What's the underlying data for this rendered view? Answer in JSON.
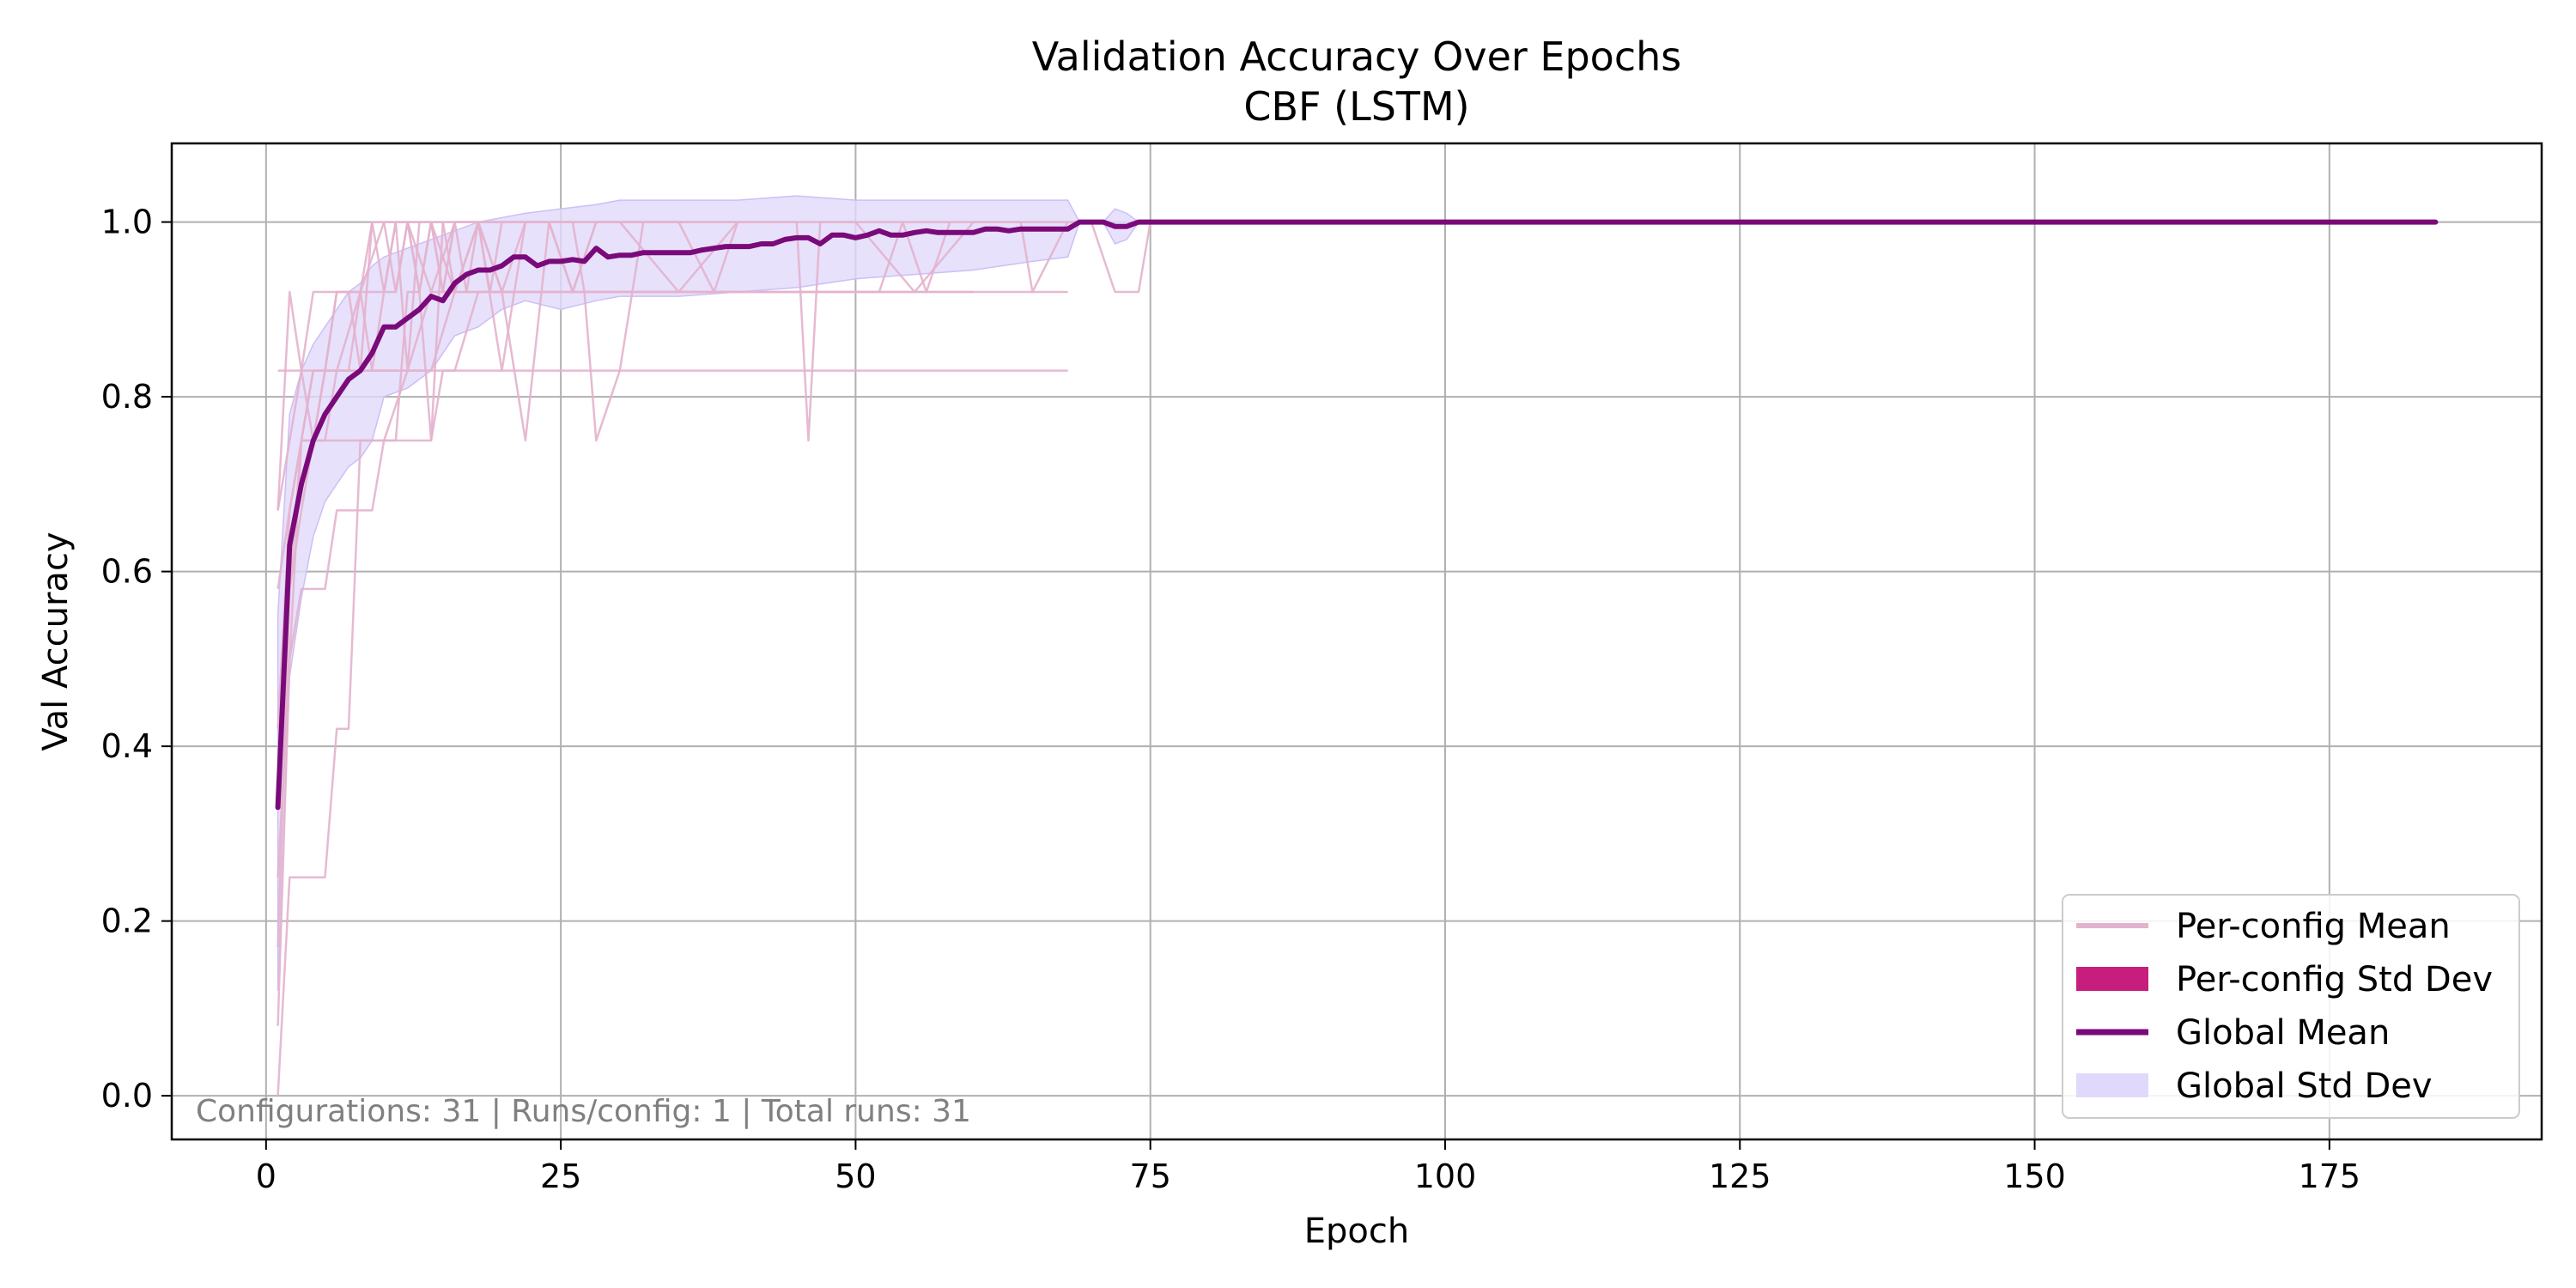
{
  "chart_data": {
    "type": "line",
    "title": "Validation Accuracy Over Epochs",
    "subtitle": "CBF (LSTM)",
    "xlabel": "Epoch",
    "ylabel": "Val Accuracy",
    "xlim": [
      -8,
      193
    ],
    "ylim": [
      -0.05,
      1.09
    ],
    "xticks": [
      0,
      25,
      50,
      75,
      100,
      125,
      150,
      175
    ],
    "yticks": [
      0.0,
      0.2,
      0.4,
      0.6,
      0.8,
      1.0
    ],
    "xtick_labels": [
      "0",
      "25",
      "50",
      "75",
      "100",
      "125",
      "150",
      "175"
    ],
    "ytick_labels": [
      "0.0",
      "0.2",
      "0.4",
      "0.6",
      "0.8",
      "1.0"
    ],
    "grid": true,
    "legend_position": "bottom-right",
    "annotation": "Configurations: 31 | Runs/config: 1 | Total runs: 31",
    "colors": {
      "per_config_mean": "#e3b3cd",
      "per_config_std": "#c71e7d",
      "global_mean": "#7a0a7a",
      "global_std": "#e1d9fb",
      "global_std_edge": "#cdbff5"
    },
    "legend": [
      {
        "label": "Per-config Mean",
        "style": "line",
        "color": "#e3b3cd"
      },
      {
        "label": "Per-config Std Dev",
        "style": "patch",
        "color": "#c71e7d"
      },
      {
        "label": "Global Mean",
        "style": "line",
        "color": "#7a0a7a"
      },
      {
        "label": "Global Std Dev",
        "style": "patch",
        "color": "#e1d9fb"
      }
    ],
    "global_mean": {
      "name": "Global Mean",
      "x": [
        1,
        2,
        3,
        4,
        5,
        6,
        7,
        8,
        9,
        10,
        11,
        12,
        13,
        14,
        15,
        16,
        17,
        18,
        19,
        20,
        21,
        22,
        23,
        24,
        25,
        26,
        27,
        28,
        29,
        30,
        31,
        32,
        33,
        34,
        35,
        36,
        37,
        38,
        39,
        40,
        41,
        42,
        43,
        44,
        45,
        46,
        47,
        48,
        49,
        50,
        51,
        52,
        53,
        54,
        55,
        56,
        57,
        58,
        59,
        60,
        61,
        62,
        63,
        64,
        65,
        66,
        67,
        68,
        69,
        70,
        71,
        72,
        73,
        74,
        75,
        80,
        90,
        100,
        110,
        120,
        130,
        140,
        150,
        160,
        170,
        180,
        184
      ],
      "y": [
        0.33,
        0.63,
        0.7,
        0.75,
        0.78,
        0.8,
        0.82,
        0.83,
        0.85,
        0.88,
        0.88,
        0.89,
        0.9,
        0.915,
        0.91,
        0.93,
        0.94,
        0.945,
        0.945,
        0.95,
        0.96,
        0.96,
        0.95,
        0.955,
        0.955,
        0.957,
        0.955,
        0.97,
        0.96,
        0.962,
        0.962,
        0.965,
        0.965,
        0.965,
        0.965,
        0.965,
        0.968,
        0.97,
        0.972,
        0.972,
        0.972,
        0.975,
        0.975,
        0.98,
        0.982,
        0.982,
        0.975,
        0.985,
        0.985,
        0.982,
        0.985,
        0.99,
        0.985,
        0.985,
        0.988,
        0.99,
        0.988,
        0.988,
        0.988,
        0.988,
        0.992,
        0.992,
        0.99,
        0.992,
        0.992,
        0.992,
        0.992,
        0.992,
        1.0,
        1.0,
        1.0,
        0.995,
        0.995,
        1.0,
        1.0,
        1.0,
        1.0,
        1.0,
        1.0,
        1.0,
        1.0,
        1.0,
        1.0,
        1.0,
        1.0,
        1.0,
        1.0
      ]
    },
    "global_std": {
      "name": "Global Std Dev",
      "x": [
        1,
        2,
        3,
        4,
        5,
        6,
        7,
        8,
        9,
        10,
        12,
        14,
        16,
        18,
        20,
        22,
        25,
        28,
        30,
        35,
        40,
        45,
        50,
        55,
        60,
        65,
        68,
        69,
        70,
        71,
        72,
        73,
        74,
        75
      ],
      "upper": [
        0.55,
        0.78,
        0.83,
        0.86,
        0.88,
        0.9,
        0.92,
        0.93,
        0.95,
        0.96,
        0.97,
        0.98,
        0.99,
        1.0,
        1.005,
        1.01,
        1.015,
        1.02,
        1.025,
        1.025,
        1.025,
        1.03,
        1.025,
        1.025,
        1.025,
        1.025,
        1.025,
        1.0,
        1.0,
        1.0,
        1.015,
        1.01,
        1.0,
        1.0
      ],
      "lower": [
        0.12,
        0.48,
        0.57,
        0.64,
        0.68,
        0.7,
        0.72,
        0.73,
        0.75,
        0.8,
        0.81,
        0.83,
        0.87,
        0.88,
        0.9,
        0.91,
        0.9,
        0.91,
        0.915,
        0.915,
        0.92,
        0.925,
        0.935,
        0.94,
        0.945,
        0.955,
        0.96,
        1.0,
        1.0,
        1.0,
        0.975,
        0.98,
        1.0,
        1.0
      ]
    },
    "per_config_series": [
      {
        "x": [
          1,
          2,
          3,
          4,
          5,
          6,
          10,
          14,
          18,
          22,
          30,
          40,
          50,
          60,
          68
        ],
        "y": [
          0.83,
          0.83,
          0.83,
          0.83,
          0.83,
          0.83,
          0.83,
          0.83,
          0.83,
          0.83,
          0.83,
          0.83,
          0.83,
          0.83,
          0.83
        ]
      },
      {
        "x": [
          1,
          2,
          3,
          4,
          5,
          6,
          7,
          8,
          9,
          10,
          12,
          14,
          16,
          20,
          25,
          30,
          40,
          50,
          60,
          68
        ],
        "y": [
          0.0,
          0.25,
          0.25,
          0.25,
          0.25,
          0.42,
          0.42,
          0.75,
          0.75,
          0.75,
          0.83,
          0.83,
          0.92,
          0.92,
          0.92,
          0.92,
          0.92,
          0.92,
          0.92,
          0.92
        ]
      },
      {
        "x": [
          1,
          2,
          3,
          4,
          5,
          6,
          7,
          8,
          9,
          10,
          11,
          12,
          13,
          14,
          15,
          16,
          18,
          20,
          22,
          24,
          26,
          28,
          30,
          35,
          40,
          45,
          46,
          47,
          50,
          55,
          60,
          64,
          65,
          68
        ],
        "y": [
          0.67,
          0.75,
          0.83,
          0.92,
          0.92,
          0.92,
          0.92,
          0.92,
          1.0,
          1.0,
          0.92,
          1.0,
          0.92,
          1.0,
          1.0,
          0.92,
          1.0,
          0.92,
          0.75,
          1.0,
          0.92,
          1.0,
          1.0,
          0.92,
          1.0,
          1.0,
          0.75,
          1.0,
          1.0,
          0.92,
          1.0,
          1.0,
          0.92,
          1.0
        ]
      },
      {
        "x": [
          1,
          2,
          3,
          4,
          5,
          6,
          7,
          8,
          9,
          10,
          11,
          12,
          13,
          14,
          15,
          16,
          17,
          18,
          19,
          20,
          22,
          24,
          26,
          28,
          30,
          35,
          40,
          45,
          50,
          55,
          60,
          62,
          64,
          66,
          68,
          70,
          72,
          74,
          75
        ],
        "y": [
          0.58,
          0.67,
          0.75,
          0.75,
          0.83,
          0.83,
          0.83,
          0.92,
          0.92,
          0.92,
          1.0,
          1.0,
          0.92,
          1.0,
          0.92,
          1.0,
          1.0,
          1.0,
          0.92,
          1.0,
          1.0,
          1.0,
          1.0,
          1.0,
          1.0,
          1.0,
          1.0,
          1.0,
          1.0,
          1.0,
          1.0,
          1.0,
          1.0,
          1.0,
          1.0,
          1.0,
          0.92,
          0.92,
          1.0
        ]
      },
      {
        "x": [
          1,
          2,
          3,
          4,
          5,
          6,
          7,
          8,
          9,
          10,
          11,
          12,
          13,
          14,
          15,
          16,
          18,
          20,
          22,
          24,
          26,
          28,
          30,
          35,
          40,
          45,
          50,
          55,
          60
        ],
        "y": [
          0.25,
          0.5,
          0.58,
          0.58,
          0.58,
          0.67,
          0.67,
          0.67,
          0.67,
          0.75,
          0.75,
          0.75,
          0.75,
          0.75,
          0.83,
          0.83,
          0.92,
          0.92,
          0.92,
          0.92,
          0.92,
          0.92,
          0.92,
          0.92,
          0.92,
          0.92,
          0.92,
          0.92,
          0.92
        ]
      },
      {
        "x": [
          1,
          2,
          3,
          4,
          5,
          6,
          7,
          8,
          9,
          10,
          11,
          12,
          13,
          14,
          16,
          18,
          20,
          22,
          24,
          26,
          27,
          28,
          30,
          32,
          35,
          38,
          40
        ],
        "y": [
          0.08,
          0.5,
          0.75,
          0.83,
          0.83,
          0.92,
          0.92,
          0.83,
          1.0,
          0.92,
          1.0,
          0.83,
          1.0,
          1.0,
          0.92,
          1.0,
          0.92,
          1.0,
          1.0,
          1.0,
          0.92,
          0.75,
          0.83,
          1.0,
          1.0,
          0.92,
          1.0
        ]
      },
      {
        "x": [
          1,
          2,
          3,
          4,
          5,
          6,
          7,
          8,
          9,
          10,
          11,
          12,
          13,
          14,
          15,
          16,
          17,
          18,
          20,
          22,
          25,
          30,
          35,
          40
        ],
        "y": [
          0.17,
          0.58,
          0.67,
          0.75,
          0.75,
          0.75,
          0.75,
          0.75,
          0.75,
          0.75,
          0.75,
          0.92,
          0.92,
          0.75,
          1.0,
          1.0,
          0.92,
          1.0,
          1.0,
          1.0,
          1.0,
          1.0,
          1.0,
          1.0
        ]
      },
      {
        "x": [
          1,
          2,
          3,
          4,
          5,
          6,
          8,
          10,
          12,
          14,
          16,
          18,
          20,
          22,
          24,
          26,
          28,
          30,
          32
        ],
        "y": [
          0.67,
          0.92,
          0.83,
          0.75,
          0.75,
          0.83,
          0.92,
          1.0,
          1.0,
          0.92,
          1.0,
          1.0,
          0.83,
          1.0,
          1.0,
          0.92,
          1.0,
          1.0,
          1.0
        ]
      },
      {
        "x": [
          1,
          2,
          3,
          4,
          5,
          6,
          7,
          8,
          9,
          10,
          11,
          12,
          13,
          14,
          15,
          16,
          17,
          18,
          19,
          20,
          22
        ],
        "y": [
          0.33,
          0.58,
          0.75,
          0.83,
          0.83,
          0.92,
          0.92,
          0.92,
          0.83,
          0.92,
          0.92,
          1.0,
          1.0,
          1.0,
          0.92,
          1.0,
          1.0,
          1.0,
          1.0,
          1.0,
          1.0
        ]
      },
      {
        "x": [
          1,
          2,
          3,
          4,
          5,
          6,
          7,
          8,
          9,
          10,
          12,
          14,
          16,
          18,
          20,
          25,
          30,
          35,
          40,
          45,
          50,
          52,
          54,
          56,
          58
        ],
        "y": [
          0.42,
          0.67,
          0.75,
          0.75,
          0.83,
          0.83,
          0.83,
          0.83,
          0.83,
          0.83,
          0.83,
          0.92,
          0.92,
          0.92,
          0.92,
          0.92,
          0.92,
          0.92,
          0.92,
          0.92,
          0.92,
          0.92,
          1.0,
          0.92,
          1.0
        ]
      }
    ]
  }
}
